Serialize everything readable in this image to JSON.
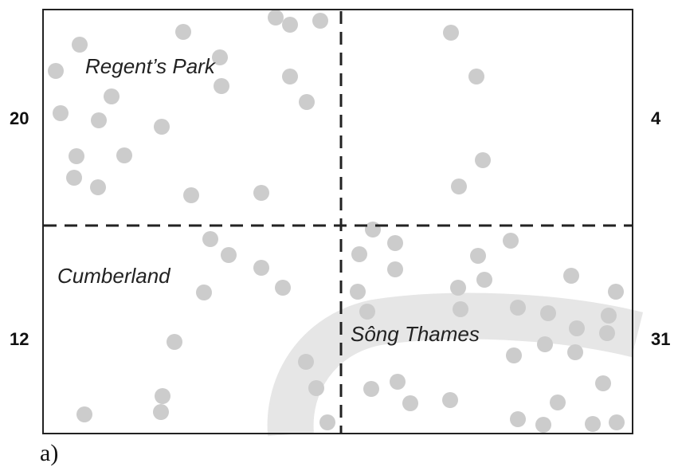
{
  "map": {
    "regions": [
      {
        "id": "top-left",
        "name": "Regent’s Park",
        "count": "20"
      },
      {
        "id": "top-right",
        "name": "",
        "count": "4"
      },
      {
        "id": "bottom-left",
        "name": "Cumberland",
        "count": "12"
      },
      {
        "id": "bottom-right",
        "name": "Sông Thames",
        "count": "31"
      }
    ],
    "dot_color": "#cccccc",
    "river_color": "#e6e6e6",
    "frame_color": "#222222",
    "divider_style": "dashed"
  },
  "caption": "a)"
}
